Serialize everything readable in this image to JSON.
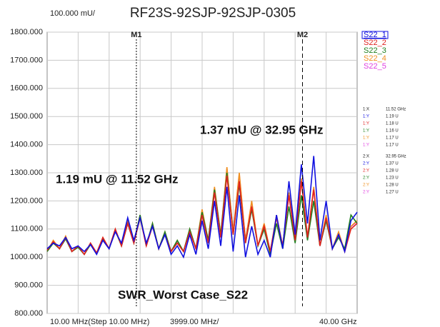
{
  "chart_data": {
    "type": "line",
    "title": "RF23S-92SJP-92SJP-0305",
    "scale_label": "100.000 mU/",
    "x_start_label": "10.00 MHz(Step 10.00 MHz)",
    "x_div_label": "3999.00 MHz/",
    "x_stop_label": "40.00 GHz",
    "xlim": [
      0.01,
      40
    ],
    "ylim": [
      800,
      1800
    ],
    "yticks": [
      {
        "value": 800,
        "label": "800.000"
      },
      {
        "value": 900,
        "label": "900.000"
      },
      {
        "value": 1000,
        "label": "1000.000"
      },
      {
        "value": 1100,
        "label": "1100.000"
      },
      {
        "value": 1200,
        "label": "1200.000"
      },
      {
        "value": 1300,
        "label": "1300.000"
      },
      {
        "value": 1400,
        "label": "1400.000"
      },
      {
        "value": 1500,
        "label": "1500.000"
      },
      {
        "value": 1600,
        "label": "1600.000"
      },
      {
        "value": 1700,
        "label": "1700.000"
      },
      {
        "value": 1800,
        "label": "1800.000"
      }
    ],
    "grid": true,
    "x": [
      0.01,
      0.8,
      1.6,
      2.4,
      3.2,
      4.0,
      4.8,
      5.6,
      6.4,
      7.2,
      8.0,
      8.8,
      9.6,
      10.4,
      11.2,
      12.0,
      12.8,
      13.6,
      14.4,
      15.2,
      16.0,
      16.8,
      17.6,
      18.4,
      19.2,
      20.0,
      20.8,
      21.6,
      22.4,
      23.2,
      24.0,
      24.8,
      25.6,
      26.4,
      27.2,
      28.0,
      28.8,
      29.6,
      30.4,
      31.2,
      32.0,
      32.8,
      33.6,
      34.4,
      35.2,
      36.0,
      36.8,
      37.6,
      38.4,
      39.2,
      40.0
    ],
    "series": [
      {
        "name": "S22_1",
        "color": "#1010e0",
        "values": [
          1030,
          1050,
          1040,
          1070,
          1030,
          1040,
          1020,
          1045,
          1010,
          1060,
          1030,
          1090,
          1050,
          1140,
          1060,
          1140,
          1050,
          1110,
          1030,
          1080,
          1010,
          1040,
          1000,
          1080,
          1010,
          1130,
          1030,
          1200,
          1040,
          1250,
          1020,
          1220,
          1000,
          1110,
          1010,
          1060,
          1000,
          1150,
          1030,
          1270,
          1080,
          1330,
          1120,
          1360,
          1060,
          1200,
          1030,
          1080,
          1020,
          1130,
          1160
        ]
      },
      {
        "name": "S22_2",
        "color": "#e02020",
        "values": [
          1025,
          1055,
          1030,
          1070,
          1020,
          1040,
          1010,
          1050,
          1015,
          1070,
          1030,
          1100,
          1040,
          1120,
          1050,
          1140,
          1040,
          1110,
          1030,
          1080,
          1020,
          1050,
          1020,
          1090,
          1030,
          1150,
          1050,
          1230,
          1070,
          1290,
          1080,
          1270,
          1050,
          1180,
          1040,
          1110,
          1020,
          1140,
          1040,
          1220,
          1060,
          1270,
          1070,
          1240,
          1040,
          1140,
          1030,
          1080,
          1020,
          1100,
          1120
        ]
      },
      {
        "name": "S22_3",
        "color": "#208020",
        "values": [
          1020,
          1050,
          1030,
          1065,
          1020,
          1035,
          1010,
          1045,
          1015,
          1065,
          1030,
          1095,
          1040,
          1120,
          1050,
          1150,
          1040,
          1120,
          1030,
          1090,
          1020,
          1060,
          1020,
          1100,
          1030,
          1160,
          1060,
          1240,
          1080,
          1300,
          1080,
          1260,
          1050,
          1170,
          1040,
          1100,
          1010,
          1120,
          1030,
          1180,
          1050,
          1220,
          1060,
          1200,
          1040,
          1130,
          1030,
          1070,
          1030,
          1150,
          1120
        ]
      },
      {
        "name": "S22_4",
        "color": "#f09020",
        "values": [
          1020,
          1060,
          1030,
          1075,
          1020,
          1040,
          1010,
          1050,
          1015,
          1070,
          1030,
          1100,
          1040,
          1130,
          1050,
          1150,
          1040,
          1120,
          1030,
          1090,
          1020,
          1060,
          1020,
          1100,
          1030,
          1170,
          1060,
          1250,
          1080,
          1320,
          1090,
          1300,
          1060,
          1200,
          1040,
          1120,
          1020,
          1150,
          1040,
          1230,
          1060,
          1280,
          1070,
          1250,
          1040,
          1150,
          1030,
          1090,
          1020,
          1110,
          1130
        ]
      },
      {
        "name": "S22_5",
        "color": "#e040e0",
        "values": [
          1020,
          1055,
          1030,
          1070,
          1020,
          1040,
          1010,
          1048,
          1015,
          1068,
          1030,
          1098,
          1040,
          1125,
          1050,
          1148,
          1040,
          1118,
          1030,
          1088,
          1020,
          1058,
          1020,
          1098,
          1030,
          1165,
          1058,
          1245,
          1078,
          1315,
          1088,
          1295,
          1058,
          1195,
          1040,
          1118,
          1020,
          1148,
          1040,
          1225,
          1060,
          1275,
          1070,
          1245,
          1040,
          1145,
          1030,
          1088,
          1020,
          1108,
          1128
        ]
      }
    ],
    "markers": [
      {
        "name": "M1",
        "x": 11.52,
        "readout_x_label": "1:X",
        "readout_x_value": "11.52 GHz",
        "readouts": [
          {
            "label": "1:Y",
            "value": "1.19 U"
          },
          {
            "label": "1:Y",
            "value": "1.18 U"
          },
          {
            "label": "1:Y",
            "value": "1.16 U"
          },
          {
            "label": "1:Y",
            "value": "1.17 U"
          },
          {
            "label": "1:Y",
            "value": "1.17 U"
          }
        ]
      },
      {
        "name": "M2",
        "x": 32.95,
        "readout_x_label": "2:X",
        "readout_x_value": "32.95 GHz",
        "readouts": [
          {
            "label": "2:Y",
            "value": "1.37 U"
          },
          {
            "label": "2:Y",
            "value": "1.28 U"
          },
          {
            "label": "2:Y",
            "value": "1.23 U"
          },
          {
            "label": "2:Y",
            "value": "1.28 U"
          },
          {
            "label": "2:Y",
            "value": "1.27 U"
          }
        ]
      }
    ],
    "annotations": [
      "1.37 mU @ 32.95 GHz",
      "1.19 mU @ 11.52 GHz",
      "SWR_Worst Case_S22"
    ]
  }
}
